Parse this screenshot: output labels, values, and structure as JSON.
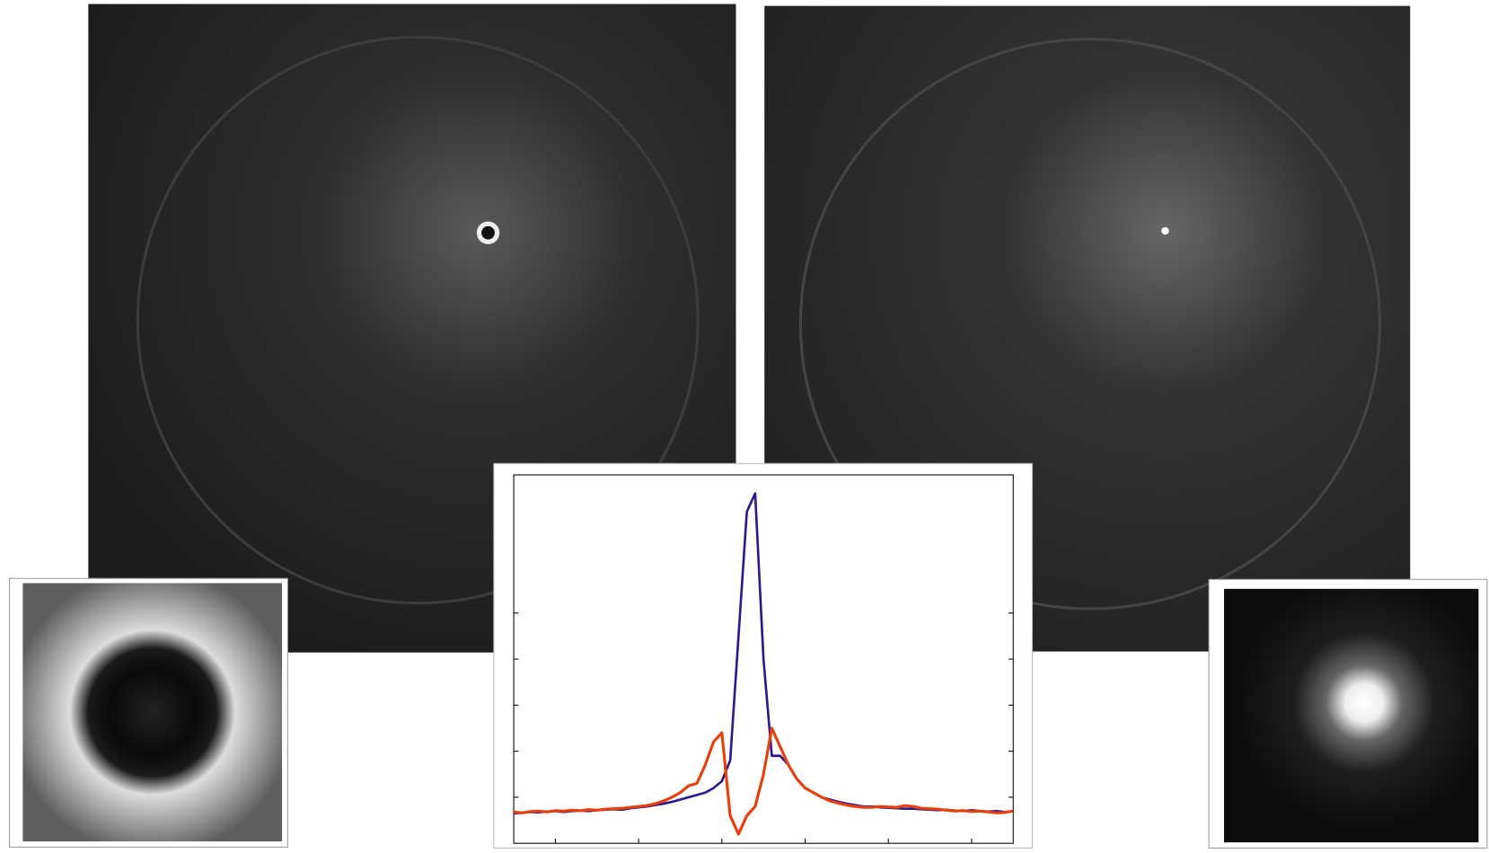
{
  "chart_data": {
    "type": "line",
    "x": [
      0,
      0.1,
      0.2,
      0.3,
      0.4,
      0.5,
      0.6,
      0.7,
      0.8,
      0.9,
      1,
      1.1,
      1.2,
      1.3,
      1.4,
      1.5,
      1.6,
      1.7,
      1.8,
      1.9,
      2,
      2.1,
      2.2,
      2.3,
      2.4,
      2.5,
      2.6,
      2.7,
      2.8,
      2.9,
      3,
      3.1,
      3.2,
      3.3,
      3.4,
      3.5,
      3.6,
      3.7,
      3.8,
      3.9,
      4,
      4.1,
      4.2,
      4.3,
      4.4,
      4.5,
      4.6,
      4.7,
      4.8,
      4.9,
      5,
      5.1,
      5.2,
      5.3,
      5.4,
      5.5,
      5.6,
      5.7,
      5.8,
      5.9,
      6
    ],
    "series": [
      {
        "color": "#2b1a8c",
        "values": [
          0.65,
          0.66,
          0.68,
          0.67,
          0.69,
          0.7,
          0.68,
          0.7,
          0.71,
          0.7,
          0.72,
          0.73,
          0.74,
          0.73,
          0.76,
          0.78,
          0.8,
          0.83,
          0.86,
          0.9,
          0.95,
          1.0,
          1.05,
          1.1,
          1.2,
          1.35,
          1.8,
          4.5,
          7.2,
          7.6,
          4.0,
          1.9,
          1.9,
          1.7,
          1.4,
          1.2,
          1.1,
          1.0,
          0.95,
          0.9,
          0.86,
          0.83,
          0.8,
          0.8,
          0.78,
          0.77,
          0.76,
          0.75,
          0.75,
          0.74,
          0.73,
          0.72,
          0.73,
          0.71,
          0.7,
          0.72,
          0.7,
          0.69,
          0.7,
          0.68,
          0.7
        ]
      },
      {
        "color": "#e8400c",
        "values": [
          0.68,
          0.66,
          0.69,
          0.7,
          0.68,
          0.71,
          0.7,
          0.72,
          0.71,
          0.73,
          0.72,
          0.74,
          0.75,
          0.76,
          0.78,
          0.8,
          0.82,
          0.86,
          0.92,
          1.0,
          1.1,
          1.25,
          1.3,
          1.7,
          2.2,
          2.4,
          0.6,
          0.2,
          0.6,
          0.8,
          1.5,
          2.5,
          2.1,
          1.7,
          1.4,
          1.2,
          1.1,
          1.0,
          0.92,
          0.87,
          0.83,
          0.8,
          0.78,
          0.78,
          0.8,
          0.79,
          0.78,
          0.82,
          0.8,
          0.76,
          0.75,
          0.74,
          0.72,
          0.7,
          0.71,
          0.69,
          0.7,
          0.68,
          0.66,
          0.67,
          0.7
        ]
      }
    ],
    "xlim": [
      0,
      6
    ],
    "xticks": [
      0.5,
      1.5,
      2.5,
      3.5,
      4.5,
      5.5
    ],
    "ylim": [
      0,
      8
    ],
    "yticks": [
      1,
      2,
      3,
      4,
      5
    ]
  }
}
